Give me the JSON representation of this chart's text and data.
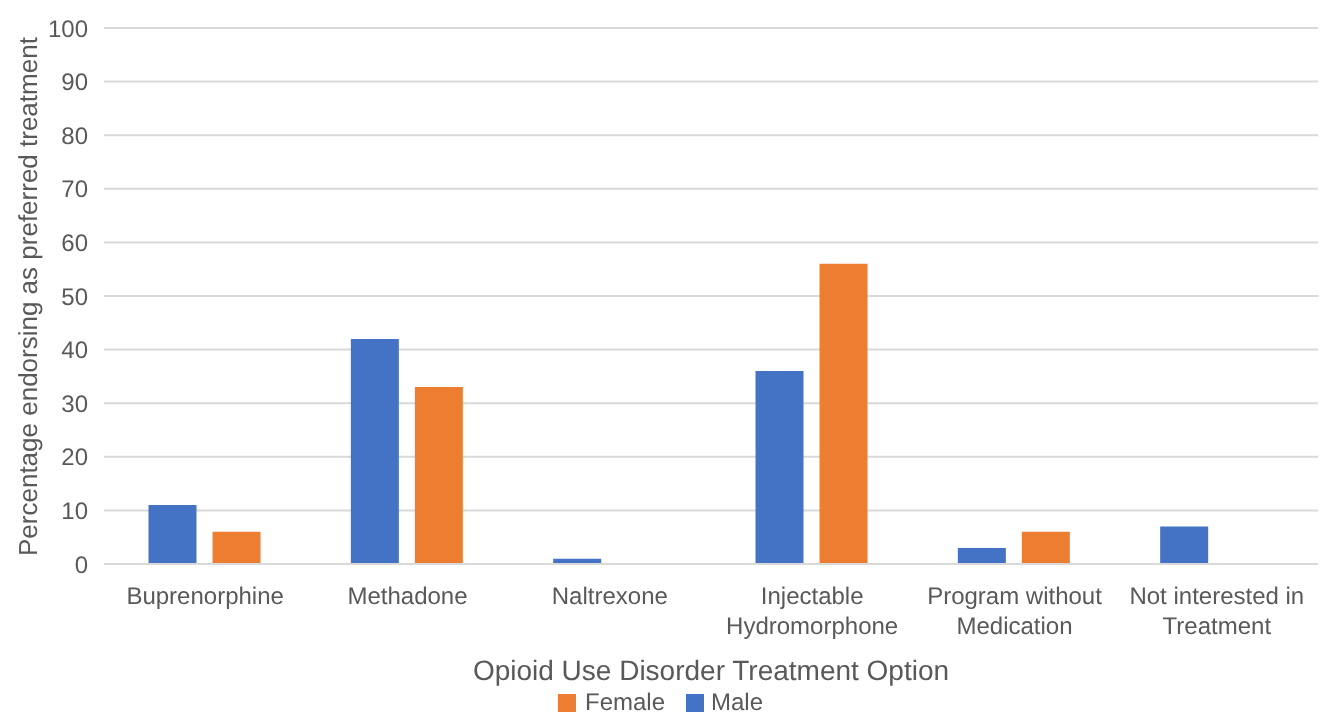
{
  "chart_data": {
    "type": "bar",
    "xlabel": "Opioid Use Disorder Treatment Option",
    "ylabel": "Percentage endorsing as preferred treatment",
    "categories": [
      "Buprenorphine",
      "Methadone",
      "Naltrexone",
      "Injectable Hydromorphone",
      "Program without Medication",
      "Not interested in Treatment"
    ],
    "series": [
      {
        "name": "Male",
        "color": "#4472c4",
        "values": [
          11,
          42,
          1,
          36,
          3,
          7
        ]
      },
      {
        "name": "Female",
        "color": "#ed7d31",
        "values": [
          6,
          33,
          0,
          56,
          6,
          0
        ]
      }
    ],
    "ylim": [
      0,
      100
    ],
    "yticks": [
      0,
      10,
      20,
      30,
      40,
      50,
      60,
      70,
      80,
      90,
      100
    ],
    "grid": "y",
    "legend": "bottom"
  }
}
